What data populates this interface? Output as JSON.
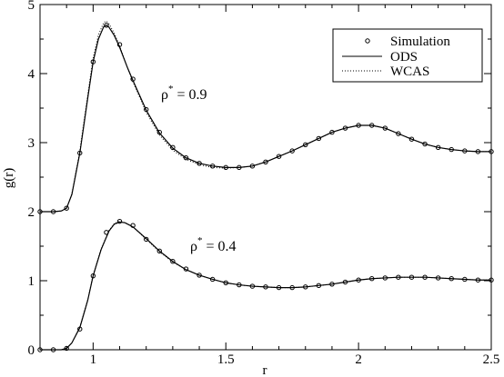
{
  "chart_data": {
    "type": "line",
    "xlabel": "r",
    "ylabel": "g(r)",
    "xlim": [
      0.8,
      2.5
    ],
    "ylim": [
      0,
      5
    ],
    "xticks": [
      1,
      1.5,
      2,
      2.5
    ],
    "xtick_labels": [
      "1",
      "1.5",
      "2",
      "2.5"
    ],
    "yticks": [
      0,
      1,
      2,
      3,
      4,
      5
    ],
    "ytick_labels": [
      "0",
      "1",
      "2",
      "3",
      "4",
      "5"
    ],
    "grid": false,
    "legend": {
      "placement": "top-right",
      "entries": [
        "Simulation",
        "ODS",
        "WCAS"
      ]
    },
    "annotations": [
      {
        "rho": "ρ",
        "star": "*",
        "text": " = 0.9"
      },
      {
        "rho": "ρ",
        "star": "*",
        "text": " = 0.4"
      }
    ],
    "series": [
      {
        "name": "Simulation",
        "style": "markers",
        "curves": [
          {
            "x": [
              0.8,
              0.85,
              0.9,
              0.95,
              1.0,
              1.05,
              1.1,
              1.15,
              1.2,
              1.25,
              1.3,
              1.35,
              1.4,
              1.45,
              1.5,
              1.55,
              1.6,
              1.65,
              1.7,
              1.75,
              1.8,
              1.85,
              1.9,
              1.95,
              2.0,
              2.05,
              2.1,
              2.15,
              2.2,
              2.25,
              2.3,
              2.35,
              2.4,
              2.45,
              2.5
            ],
            "y": [
              2.0,
              2.0,
              2.05,
              2.85,
              4.17,
              4.7,
              4.42,
              3.92,
              3.48,
              3.15,
              2.93,
              2.78,
              2.7,
              2.66,
              2.64,
              2.64,
              2.66,
              2.72,
              2.8,
              2.88,
              2.97,
              3.06,
              3.15,
              3.21,
              3.25,
              3.25,
              3.21,
              3.13,
              3.05,
              2.98,
              2.93,
              2.9,
              2.88,
              2.87,
              2.87
            ]
          },
          {
            "x": [
              0.8,
              0.85,
              0.9,
              0.95,
              1.0,
              1.05,
              1.1,
              1.15,
              1.2,
              1.25,
              1.3,
              1.35,
              1.4,
              1.45,
              1.5,
              1.55,
              1.6,
              1.65,
              1.7,
              1.75,
              1.8,
              1.85,
              1.9,
              1.95,
              2.0,
              2.05,
              2.1,
              2.15,
              2.2,
              2.25,
              2.3,
              2.35,
              2.4,
              2.45,
              2.5
            ],
            "y": [
              0.0,
              0.0,
              0.02,
              0.3,
              1.07,
              1.7,
              1.86,
              1.8,
              1.6,
              1.43,
              1.28,
              1.17,
              1.08,
              1.02,
              0.97,
              0.94,
              0.92,
              0.91,
              0.9,
              0.9,
              0.91,
              0.93,
              0.95,
              0.98,
              1.01,
              1.03,
              1.04,
              1.05,
              1.05,
              1.05,
              1.04,
              1.03,
              1.02,
              1.01,
              1.01
            ]
          }
        ]
      },
      {
        "name": "ODS",
        "style": "solid",
        "curves": [
          {
            "x": [
              0.8,
              0.85,
              0.88,
              0.9,
              0.92,
              0.95,
              0.98,
              1.0,
              1.02,
              1.04,
              1.05,
              1.06,
              1.08,
              1.1,
              1.13,
              1.15,
              1.2,
              1.25,
              1.3,
              1.35,
              1.4,
              1.45,
              1.5,
              1.55,
              1.6,
              1.65,
              1.7,
              1.75,
              1.8,
              1.85,
              1.9,
              1.95,
              2.0,
              2.05,
              2.1,
              2.15,
              2.2,
              2.25,
              2.3,
              2.35,
              2.4,
              2.45,
              2.5
            ],
            "y": [
              2.0,
              2.0,
              2.01,
              2.05,
              2.25,
              2.85,
              3.65,
              4.17,
              4.5,
              4.68,
              4.7,
              4.67,
              4.55,
              4.38,
              4.08,
              3.9,
              3.47,
              3.14,
              2.92,
              2.78,
              2.7,
              2.66,
              2.64,
              2.64,
              2.66,
              2.72,
              2.8,
              2.88,
              2.97,
              3.06,
              3.15,
              3.21,
              3.25,
              3.25,
              3.21,
              3.13,
              3.05,
              2.98,
              2.93,
              2.9,
              2.88,
              2.87,
              2.87
            ]
          },
          {
            "x": [
              0.8,
              0.85,
              0.88,
              0.9,
              0.92,
              0.95,
              0.98,
              1.0,
              1.03,
              1.06,
              1.08,
              1.1,
              1.12,
              1.15,
              1.2,
              1.25,
              1.3,
              1.35,
              1.4,
              1.45,
              1.5,
              1.55,
              1.6,
              1.65,
              1.7,
              1.75,
              1.8,
              1.85,
              1.9,
              1.95,
              2.0,
              2.05,
              2.1,
              2.15,
              2.2,
              2.25,
              2.3,
              2.35,
              2.4,
              2.45,
              2.5
            ],
            "y": [
              0.0,
              0.0,
              0.0,
              0.02,
              0.1,
              0.32,
              0.72,
              1.07,
              1.45,
              1.72,
              1.82,
              1.85,
              1.84,
              1.78,
              1.61,
              1.43,
              1.28,
              1.16,
              1.08,
              1.02,
              0.97,
              0.94,
              0.92,
              0.91,
              0.9,
              0.9,
              0.91,
              0.93,
              0.95,
              0.98,
              1.01,
              1.03,
              1.04,
              1.05,
              1.05,
              1.05,
              1.04,
              1.03,
              1.02,
              1.01,
              1.01
            ]
          }
        ]
      },
      {
        "name": "WCAS",
        "style": "dotted",
        "curves": [
          {
            "x": [
              0.8,
              0.85,
              0.88,
              0.9,
              0.92,
              0.95,
              0.98,
              1.0,
              1.02,
              1.04,
              1.05,
              1.06,
              1.08,
              1.1,
              1.13,
              1.15,
              1.2,
              1.25,
              1.3,
              1.35,
              1.4,
              1.45,
              1.5,
              1.55,
              1.6,
              1.65,
              1.7,
              1.75,
              1.8,
              1.85,
              1.9,
              1.95,
              2.0,
              2.05,
              2.1,
              2.15,
              2.2,
              2.25,
              2.3,
              2.35,
              2.4,
              2.45,
              2.5
            ],
            "y": [
              2.0,
              2.0,
              2.01,
              2.05,
              2.26,
              2.88,
              3.7,
              4.22,
              4.56,
              4.74,
              4.76,
              4.72,
              4.58,
              4.4,
              4.08,
              3.88,
              3.44,
              3.11,
              2.89,
              2.76,
              2.68,
              2.64,
              2.63,
              2.64,
              2.66,
              2.72,
              2.8,
              2.88,
              2.97,
              3.06,
              3.15,
              3.21,
              3.25,
              3.25,
              3.21,
              3.13,
              3.05,
              2.98,
              2.93,
              2.9,
              2.88,
              2.87,
              2.87
            ]
          },
          {
            "x": [
              0.8,
              0.85,
              0.88,
              0.9,
              0.92,
              0.95,
              0.98,
              1.0,
              1.03,
              1.06,
              1.08,
              1.1,
              1.12,
              1.15,
              1.2,
              1.25,
              1.3,
              1.35,
              1.4,
              1.45,
              1.5,
              1.55,
              1.6,
              1.65,
              1.7,
              1.75,
              1.8,
              1.85,
              1.9,
              1.95,
              2.0,
              2.05,
              2.1,
              2.15,
              2.2,
              2.25,
              2.3,
              2.35,
              2.4,
              2.45,
              2.5
            ],
            "y": [
              0.0,
              0.0,
              0.0,
              0.02,
              0.1,
              0.33,
              0.73,
              1.08,
              1.46,
              1.73,
              1.83,
              1.86,
              1.84,
              1.78,
              1.6,
              1.42,
              1.27,
              1.16,
              1.08,
              1.02,
              0.97,
              0.94,
              0.92,
              0.91,
              0.9,
              0.9,
              0.91,
              0.93,
              0.95,
              0.98,
              1.01,
              1.03,
              1.04,
              1.05,
              1.05,
              1.05,
              1.04,
              1.03,
              1.02,
              1.01,
              1.01
            ]
          }
        ]
      }
    ]
  }
}
